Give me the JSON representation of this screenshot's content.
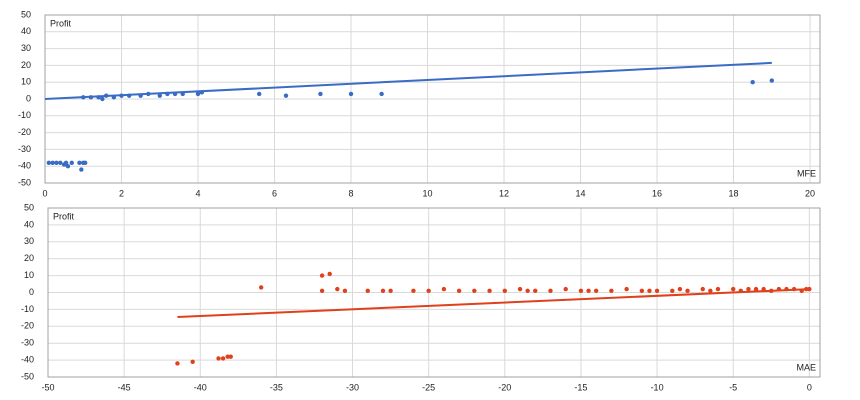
{
  "chart_data": [
    {
      "type": "scatter",
      "y_label": "Profit",
      "x_label": "MFE",
      "xlim": [
        0,
        20.26
      ],
      "xticks": [
        0,
        2,
        4,
        6,
        8,
        10,
        12,
        14,
        16,
        18,
        20
      ],
      "ylim": [
        -50,
        50
      ],
      "yticks": [
        -50,
        -40,
        -30,
        -20,
        -10,
        0,
        10,
        20,
        30,
        40,
        50
      ],
      "grid": true,
      "color": "#3a6cc6",
      "x": [
        0.1,
        0.2,
        0.3,
        0.4,
        0.5,
        0.55,
        0.6,
        0.7,
        0.9,
        0.95,
        1.0,
        1.05,
        1.0,
        1.2,
        1.4,
        1.5,
        1.6,
        1.8,
        2.0,
        2.2,
        2.5,
        2.7,
        3.0,
        3.2,
        3.4,
        3.6,
        4.0,
        4.1,
        5.6,
        6.3,
        7.2,
        8.0,
        8.8,
        18.5,
        19.0
      ],
      "values": [
        -38,
        -38,
        -38,
        -38,
        -39,
        -38,
        -40,
        -38,
        -38,
        -42,
        -38,
        -38,
        1,
        1,
        1,
        0,
        2,
        1,
        2,
        2,
        2,
        3,
        2,
        3,
        3,
        3,
        3,
        4,
        3,
        2,
        3,
        3,
        3,
        10,
        11
      ],
      "trend": {
        "x": [
          0,
          19
        ],
        "values": [
          0,
          21.5
        ]
      }
    },
    {
      "type": "scatter",
      "y_label": "Profit",
      "x_label": "MAE",
      "xlim": [
        -50,
        0.7
      ],
      "xticks": [
        -50,
        -45,
        -40,
        -35,
        -30,
        -25,
        -20,
        -15,
        -10,
        -5,
        0
      ],
      "ylim": [
        -50,
        50
      ],
      "yticks": [
        -50,
        -40,
        -30,
        -20,
        -10,
        0,
        10,
        20,
        30,
        40,
        50
      ],
      "grid": true,
      "color": "#e0401c",
      "x": [
        -41.5,
        -40.5,
        -38.8,
        -38.5,
        -38.2,
        -38,
        -36,
        -32,
        -31.5,
        -32,
        -31,
        -30.5,
        -29,
        -28,
        -27.5,
        -26,
        -25,
        -24,
        -23,
        -22,
        -21,
        -20,
        -19,
        -18.5,
        -18,
        -17,
        -16,
        -15,
        -14.5,
        -14,
        -13,
        -12,
        -11,
        -10.5,
        -10,
        -9,
        -8.5,
        -8,
        -7,
        -6.5,
        -6,
        -5,
        -4.5,
        -4,
        -3.5,
        -3,
        -2.5,
        -2,
        -1.5,
        -1,
        -0.5,
        -0.2,
        0
      ],
      "values": [
        -42,
        -41,
        -39,
        -39,
        -38,
        -38,
        3,
        10,
        11,
        1,
        2,
        1,
        1,
        1,
        1,
        1,
        1,
        2,
        1,
        1,
        1,
        1,
        2,
        1,
        1,
        1,
        2,
        1,
        1,
        1,
        1,
        2,
        1,
        1,
        1,
        1,
        2,
        1,
        2,
        1,
        2,
        2,
        1,
        2,
        2,
        2,
        1,
        2,
        2,
        2,
        1,
        2,
        2
      ],
      "trend": {
        "x": [
          -41.5,
          0
        ],
        "values": [
          -14.5,
          2
        ]
      }
    }
  ]
}
